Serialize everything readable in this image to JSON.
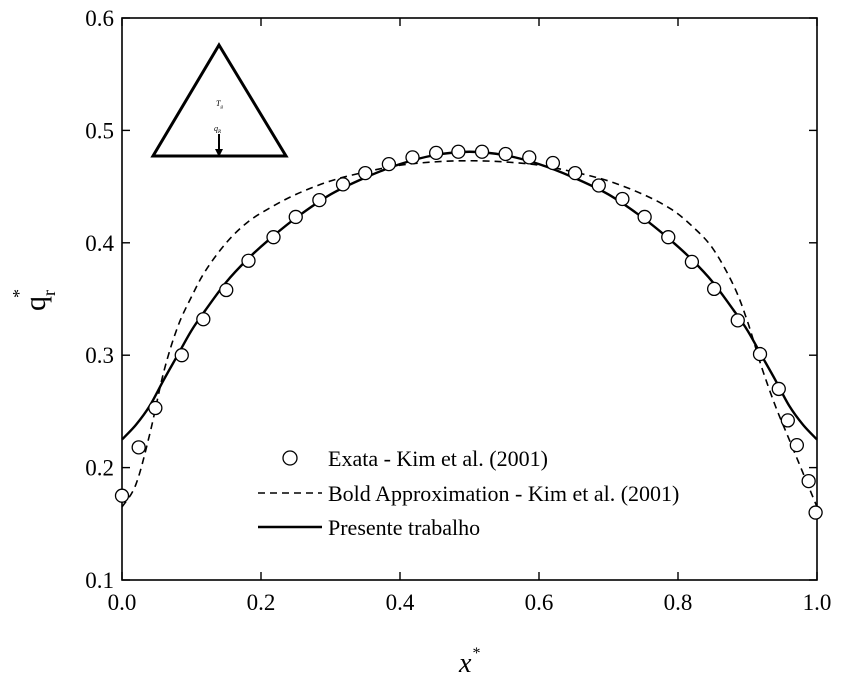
{
  "chart_data": {
    "type": "line",
    "xlabel": "x",
    "xlabel_sup": "*",
    "ylabel": "q",
    "ylabel_sub": "r",
    "ylabel_sup": "*",
    "xlim": [
      0.0,
      1.0
    ],
    "ylim": [
      0.1,
      0.6
    ],
    "xticks": [
      0.0,
      0.2,
      0.4,
      0.6,
      0.8,
      1.0
    ],
    "xtick_labels": [
      "0.0",
      "0.2",
      "0.4",
      "0.6",
      "0.8",
      "1.0"
    ],
    "yticks": [
      0.1,
      0.2,
      0.3,
      0.4,
      0.5,
      0.6
    ],
    "ytick_labels": [
      "0.1",
      "0.2",
      "0.3",
      "0.4",
      "0.5",
      "0.6"
    ],
    "grid": false,
    "legend_position": "bottom-center",
    "series": [
      {
        "name": "Exata - Kim et al. (2001)",
        "style": "circle-markers",
        "x": [
          0.0,
          0.024,
          0.048,
          0.086,
          0.117,
          0.15,
          0.182,
          0.218,
          0.25,
          0.284,
          0.318,
          0.35,
          0.384,
          0.418,
          0.452,
          0.484,
          0.518,
          0.552,
          0.586,
          0.62,
          0.652,
          0.686,
          0.72,
          0.752,
          0.786,
          0.82,
          0.852,
          0.886,
          0.918,
          0.945,
          0.958,
          0.971,
          0.988,
          0.998
        ],
        "y": [
          0.175,
          0.218,
          0.253,
          0.3,
          0.332,
          0.358,
          0.384,
          0.405,
          0.423,
          0.438,
          0.452,
          0.462,
          0.47,
          0.476,
          0.48,
          0.481,
          0.481,
          0.479,
          0.476,
          0.471,
          0.462,
          0.451,
          0.439,
          0.423,
          0.405,
          0.383,
          0.359,
          0.331,
          0.301,
          0.27,
          0.242,
          0.22,
          0.188,
          0.16
        ]
      },
      {
        "name": "Bold Approximation - Kim et al. (2001)",
        "style": "dashed",
        "x": [
          0.0,
          0.02,
          0.04,
          0.06,
          0.08,
          0.1,
          0.12,
          0.15,
          0.18,
          0.21,
          0.25,
          0.3,
          0.35,
          0.4,
          0.45,
          0.5,
          0.55,
          0.6,
          0.65,
          0.7,
          0.75,
          0.79,
          0.82,
          0.85,
          0.88,
          0.9,
          0.92,
          0.94,
          0.96,
          0.98,
          1.0
        ],
        "y": [
          0.165,
          0.185,
          0.23,
          0.285,
          0.325,
          0.352,
          0.375,
          0.4,
          0.418,
          0.43,
          0.443,
          0.455,
          0.463,
          0.469,
          0.472,
          0.473,
          0.472,
          0.469,
          0.463,
          0.455,
          0.443,
          0.43,
          0.415,
          0.395,
          0.362,
          0.33,
          0.29,
          0.255,
          0.225,
          0.195,
          0.165
        ]
      },
      {
        "name": "Presente trabalho",
        "style": "solid",
        "x": [
          0.0,
          0.02,
          0.04,
          0.06,
          0.08,
          0.1,
          0.12,
          0.15,
          0.18,
          0.21,
          0.25,
          0.3,
          0.35,
          0.4,
          0.45,
          0.5,
          0.55,
          0.6,
          0.65,
          0.7,
          0.75,
          0.79,
          0.82,
          0.85,
          0.88,
          0.9,
          0.92,
          0.94,
          0.96,
          0.98,
          1.0
        ],
        "y": [
          0.225,
          0.238,
          0.255,
          0.278,
          0.3,
          0.322,
          0.34,
          0.365,
          0.385,
          0.402,
          0.422,
          0.443,
          0.458,
          0.47,
          0.478,
          0.481,
          0.478,
          0.47,
          0.458,
          0.443,
          0.422,
          0.402,
          0.385,
          0.365,
          0.34,
          0.322,
          0.3,
          0.278,
          0.255,
          0.238,
          0.225
        ]
      }
    ],
    "inset": {
      "label_temperature": "T",
      "label_temperature_sub": "g",
      "label_flux": "q",
      "label_flux_sub": "R"
    }
  }
}
